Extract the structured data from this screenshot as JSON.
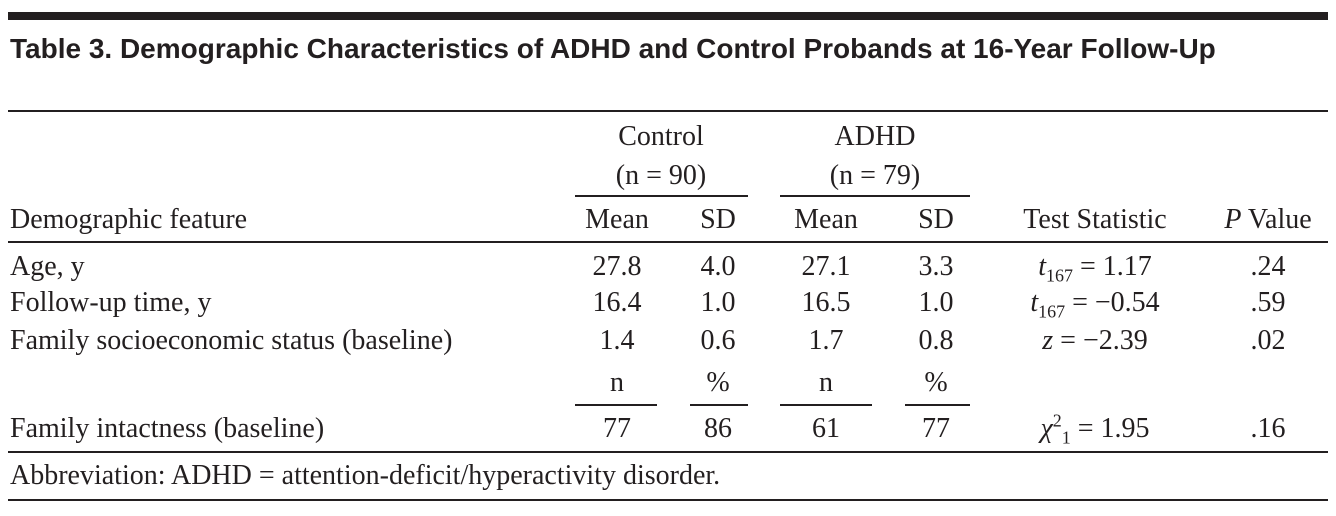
{
  "title": "Table 3. Demographic Characteristics of ADHD and Control Probands at 16-Year Follow-Up",
  "table": {
    "groups": [
      {
        "name": "Control",
        "n": "(n = 90)"
      },
      {
        "name": "ADHD",
        "n": "(n = 79)"
      }
    ],
    "header": [
      "Demographic feature",
      "Mean",
      "SD",
      "Mean",
      "SD",
      "Test Statistic",
      {
        "italic": "P",
        "text": "Value"
      }
    ],
    "rows": [
      [
        "Age, y",
        "27.8",
        "4.0",
        "27.1",
        "3.3",
        {
          "symbol": "t",
          "sub": "167",
          "text": "= 1.17"
        },
        ".24"
      ],
      [
        "Follow-up time, y",
        "16.4",
        "1.0",
        "16.5",
        "1.0",
        {
          "symbol": "t",
          "sub": "167",
          "text": "= −0.54"
        },
        ".59"
      ],
      [
        "Family socioeconomic status (baseline)",
        "1.4",
        "0.6",
        "1.7",
        "0.8",
        {
          "symbol": "z",
          "text": "= −2.39"
        },
        ".02"
      ]
    ],
    "subheader": [
      "n",
      "%",
      "n",
      "%"
    ],
    "rows2": [
      [
        "Family intactness (baseline)",
        "77",
        "86",
        "61",
        "77",
        {
          "symbol": "χ",
          "sup": "2",
          "sub": "1",
          "text": "= 1.95"
        },
        ".16"
      ]
    ]
  },
  "footnote": "Abbreviation: ADHD = attention-deficit/hyperactivity disorder."
}
